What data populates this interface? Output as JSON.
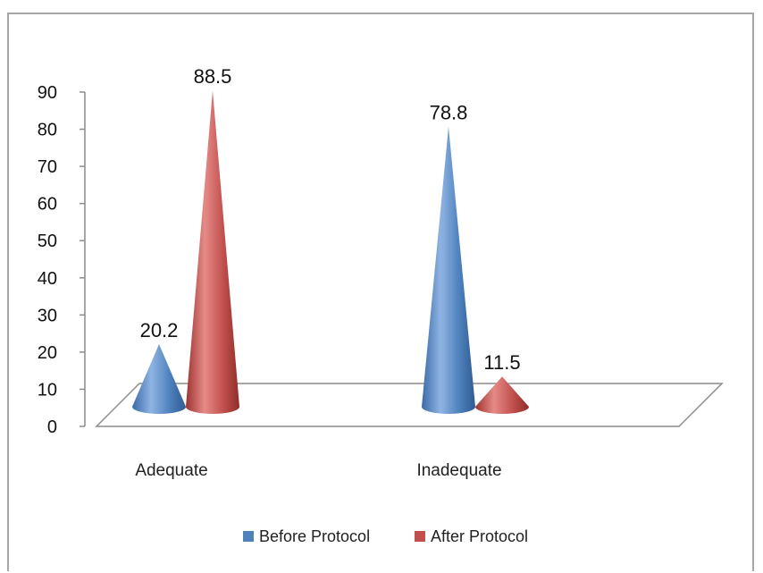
{
  "chart_data": {
    "type": "bar",
    "style": "3d-cone",
    "categories": [
      "Adequate",
      "Inadequate"
    ],
    "series": [
      {
        "name": "Before Protocol",
        "values": [
          20.2,
          78.8
        ],
        "color": "#4f81bd"
      },
      {
        "name": "After Protocol",
        "values": [
          88.5,
          11.5
        ],
        "color": "#c0504d"
      }
    ],
    "yticks": [
      0,
      10,
      20,
      30,
      40,
      50,
      60,
      70,
      80,
      90
    ],
    "ylim": [
      0,
      90
    ],
    "legend_position": "bottom",
    "grid": false,
    "data_labels": true
  }
}
